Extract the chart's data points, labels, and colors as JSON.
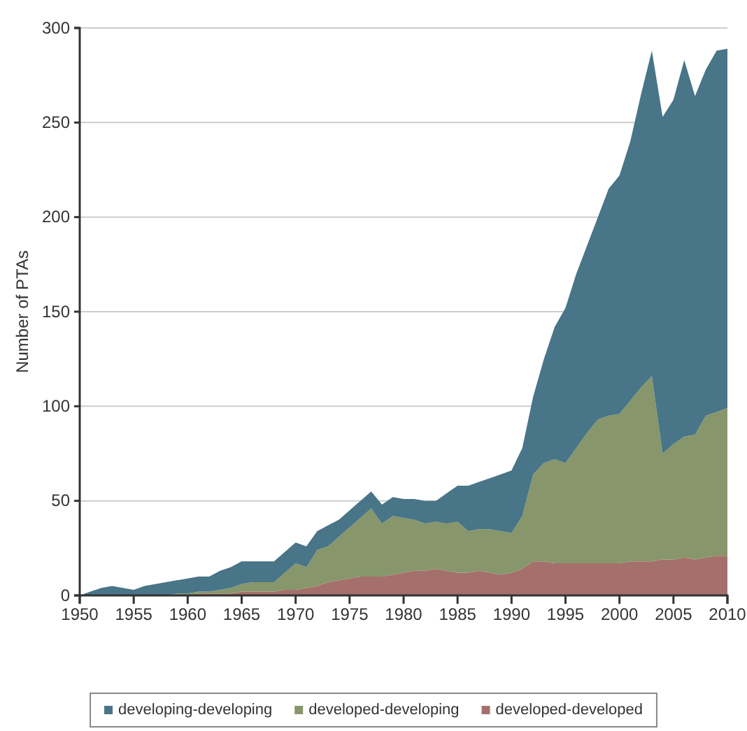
{
  "chart_data": {
    "type": "area",
    "stacked": true,
    "ylabel": "Number of PTAs",
    "x": [
      1950,
      1951,
      1952,
      1953,
      1954,
      1955,
      1956,
      1957,
      1958,
      1959,
      1960,
      1961,
      1962,
      1963,
      1964,
      1965,
      1966,
      1967,
      1968,
      1969,
      1970,
      1971,
      1972,
      1973,
      1974,
      1975,
      1976,
      1977,
      1978,
      1979,
      1980,
      1981,
      1982,
      1983,
      1984,
      1985,
      1986,
      1987,
      1988,
      1989,
      1990,
      1991,
      1992,
      1993,
      1994,
      1995,
      1996,
      1997,
      1998,
      1999,
      2000,
      2001,
      2002,
      2003,
      2004,
      2005,
      2006,
      2007,
      2008,
      2009,
      2010
    ],
    "series": [
      {
        "name": "developed-developed",
        "color": "#a5706b",
        "values": [
          0,
          0,
          0,
          0,
          0,
          0,
          0,
          0,
          0,
          0,
          0,
          1,
          1,
          1,
          1,
          2,
          2,
          2,
          2,
          3,
          3,
          4,
          5,
          7,
          8,
          9,
          10,
          10,
          10,
          11,
          12,
          13,
          13,
          14,
          13,
          12,
          12,
          13,
          12,
          11,
          12,
          14,
          18,
          18,
          17,
          17,
          17,
          17,
          17,
          17,
          17,
          18,
          18,
          18,
          19,
          19,
          20,
          19,
          20,
          21,
          21
        ]
      },
      {
        "name": "developed-developing",
        "color": "#87966b",
        "values": [
          0,
          0,
          0,
          0,
          0,
          0,
          0,
          0,
          0,
          1,
          1,
          1,
          1,
          2,
          3,
          4,
          5,
          5,
          5,
          9,
          14,
          11,
          19,
          19,
          23,
          27,
          31,
          36,
          28,
          31,
          29,
          27,
          25,
          25,
          25,
          27,
          22,
          22,
          23,
          23,
          21,
          28,
          46,
          52,
          55,
          53,
          61,
          69,
          76,
          78,
          79,
          85,
          92,
          98,
          56,
          61,
          64,
          66,
          75,
          76,
          78
        ]
      },
      {
        "name": "developing-developing",
        "color": "#487587",
        "values": [
          0,
          2,
          4,
          5,
          4,
          3,
          5,
          6,
          7,
          7,
          8,
          8,
          8,
          10,
          11,
          12,
          11,
          11,
          11,
          11,
          11,
          11,
          10,
          11,
          9,
          9,
          9,
          9,
          10,
          10,
          10,
          11,
          12,
          11,
          16,
          19,
          24,
          25,
          27,
          30,
          33,
          36,
          41,
          55,
          70,
          82,
          92,
          99,
          107,
          120,
          126,
          137,
          155,
          172,
          178,
          182,
          199,
          179,
          183,
          191,
          190
        ]
      }
    ],
    "xlim": [
      1950,
      2010
    ],
    "xticks": [
      1950,
      1955,
      1960,
      1965,
      1970,
      1975,
      1980,
      1985,
      1990,
      1995,
      2000,
      2005,
      2010
    ],
    "ylim": [
      0,
      300
    ],
    "yticks": [
      0,
      50,
      100,
      150,
      200,
      250,
      300
    ],
    "grid": "y",
    "legend": "bottom"
  }
}
